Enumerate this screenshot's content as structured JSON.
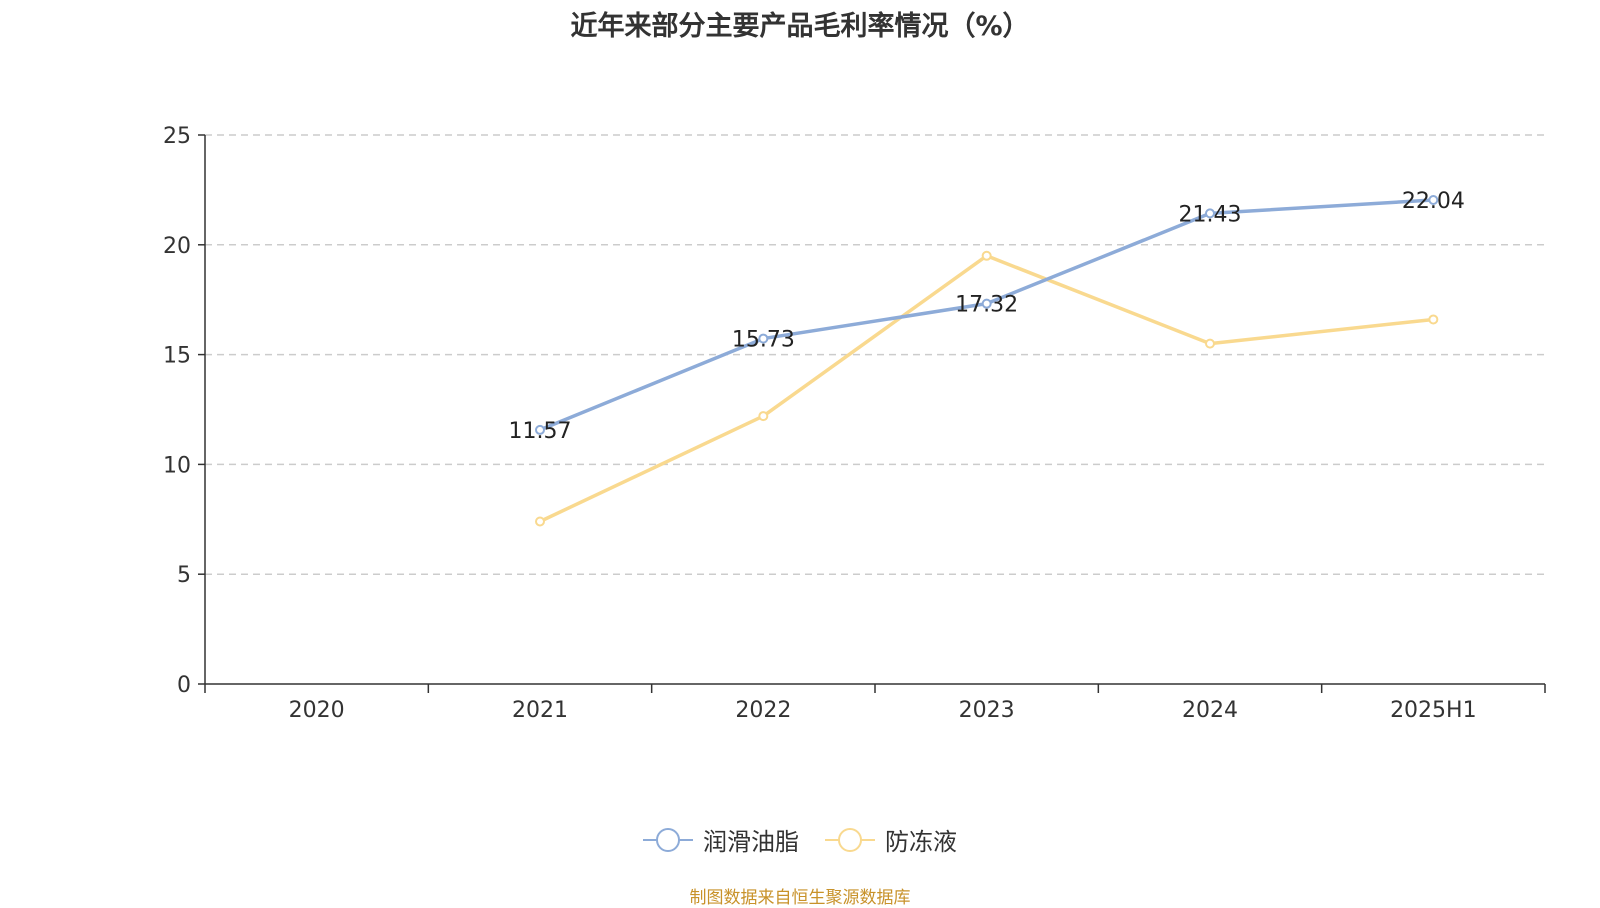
{
  "chart_data": {
    "type": "line",
    "title": "近年来部分主要产品毛利率情况（%）",
    "categories": [
      "2020",
      "2021",
      "2022",
      "2023",
      "2024",
      "2025H1"
    ],
    "ylim": [
      0,
      25
    ],
    "yticks": [
      0,
      5,
      10,
      15,
      20,
      25
    ],
    "grid": true,
    "series": [
      {
        "name": "润滑油脂",
        "color": "#8dabd8",
        "values": [
          null,
          11.57,
          15.73,
          17.32,
          21.43,
          22.04
        ],
        "labels": [
          null,
          "11.57",
          "15.73",
          "17.32",
          "21.43",
          "22.04"
        ]
      },
      {
        "name": "防冻液",
        "color": "#f9d98f",
        "values": [
          null,
          7.4,
          12.2,
          19.5,
          15.5,
          16.6
        ],
        "labels": [
          null,
          null,
          null,
          null,
          null,
          null
        ]
      }
    ],
    "legend_position": "bottom"
  },
  "source": "制图数据来自恒生聚源数据库"
}
